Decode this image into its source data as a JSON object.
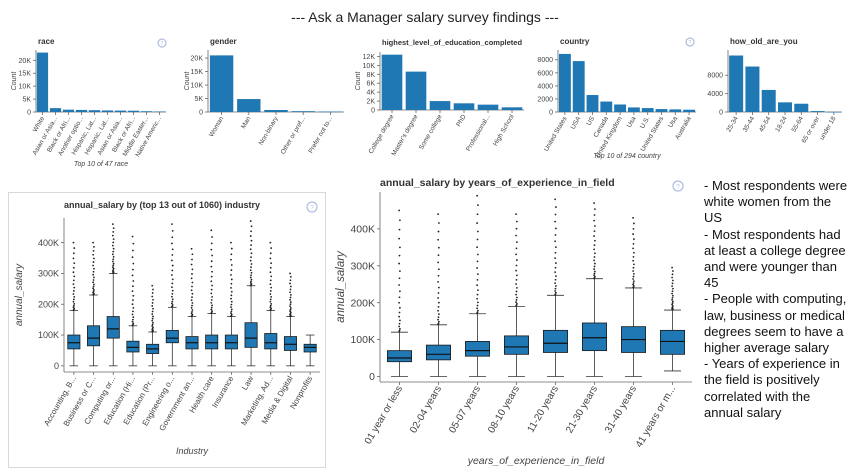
{
  "page_title": "--- Ask a Manager salary survey findings ---",
  "notes": [
    "- Most respondents were white women from the US",
    "- Most respondents had at least a college degree and were younger than 45",
    "- People with computing, law, business or medical degrees seem to have a higher average salary",
    "- Years of experience in the field is positively correlated with the annual salary"
  ],
  "colors": {
    "bar": "#1f77b4",
    "box": "#1f77b4",
    "axis": "#666666",
    "help_icon": "#b0bde0"
  },
  "chart_data": [
    {
      "id": "race",
      "type": "bar",
      "title": "race",
      "ylabel": "Count",
      "xlabel": "Top 10 of 47 race",
      "categories": [
        "White",
        "Asian or Asia...",
        "Black or Afri...",
        "Another optio...",
        "Hispanic, Lat...",
        "Hispanic, Lat...",
        "Asian or Asia...",
        "Black or Afri...",
        "Middle Easter...",
        "Native Americ..."
      ],
      "values": [
        23000,
        1500,
        900,
        800,
        700,
        600,
        550,
        500,
        300,
        200
      ],
      "yticks": [
        0,
        5000,
        10000,
        15000,
        20000
      ],
      "ytick_labels": [
        "0",
        "5K",
        "10K",
        "15K",
        "20K"
      ],
      "ylim": [
        0,
        24000
      ]
    },
    {
      "id": "gender",
      "type": "bar",
      "title": "gender",
      "ylabel": "Count",
      "xlabel": "",
      "categories": [
        "Woman",
        "Man",
        "Non-binary",
        "Other or pref...",
        "Prefer not to..."
      ],
      "values": [
        21000,
        4800,
        750,
        300,
        150
      ],
      "yticks": [
        0,
        5000,
        10000,
        15000,
        20000
      ],
      "ytick_labels": [
        "0",
        "5K",
        "10K",
        "15K",
        "20K"
      ],
      "ylim": [
        0,
        23000
      ]
    },
    {
      "id": "education",
      "type": "bar",
      "title": "highest_level_of_education_completed",
      "ylabel": "Count",
      "xlabel": "",
      "categories": [
        "College degree",
        "Master's degree",
        "Some college",
        "PhD",
        "Professional...",
        "High School"
      ],
      "values": [
        12400,
        8600,
        2000,
        1500,
        1200,
        600
      ],
      "yticks": [
        0,
        2000,
        4000,
        6000,
        8000,
        10000,
        12000
      ],
      "ytick_labels": [
        "0",
        "2K",
        "4K",
        "6K",
        "8K",
        "10K",
        "12K"
      ],
      "ylim": [
        0,
        13000
      ]
    },
    {
      "id": "country",
      "type": "bar",
      "title": "country",
      "ylabel": "",
      "xlabel": "Top 10 of 294 country",
      "categories": [
        "United States",
        "USA",
        "US",
        "Canada",
        "United Kingdom",
        "Usa",
        "U.S.",
        "United States",
        "Usa",
        "Australia"
      ],
      "values": [
        8900,
        7800,
        2600,
        1600,
        1150,
        700,
        600,
        450,
        400,
        350
      ],
      "yticks": [
        0,
        2000,
        4000,
        6000,
        8000
      ],
      "ytick_labels": [
        "0",
        "2000",
        "4000",
        "6000",
        "8000"
      ],
      "ylim": [
        0,
        9500
      ]
    },
    {
      "id": "age",
      "type": "bar",
      "title": "how_old_are_you",
      "ylabel": "",
      "xlabel": "",
      "categories": [
        "25-34",
        "35-44",
        "45-54",
        "18-24",
        "55-64",
        "65 or over",
        "under 18"
      ],
      "values": [
        12300,
        9900,
        4800,
        2100,
        1800,
        200,
        30
      ],
      "yticks": [
        0,
        4000,
        8000
      ],
      "ytick_labels": [
        "0",
        "4000",
        "8000"
      ],
      "ylim": [
        0,
        13500
      ]
    },
    {
      "id": "industry",
      "type": "box",
      "title": "annual_salary by (top 13 out of 1060) industry",
      "ylabel": "annual_salary",
      "xlabel": "Industry",
      "categories": [
        "Accounting, B...",
        "Business or C...",
        "Computing or...",
        "Education (Hi...",
        "Education (Pr...",
        "Engineering o...",
        "Government an...",
        "Health care",
        "Insurance",
        "Law",
        "Marketing, Ad...",
        "Media & Digital",
        "Nonprofits"
      ],
      "boxes": [
        {
          "wlo": 0,
          "q1": 55000,
          "med": 75000,
          "q3": 100000,
          "whi": 180000,
          "outmax": 400000
        },
        {
          "wlo": 0,
          "q1": 65000,
          "med": 90000,
          "q3": 130000,
          "whi": 230000,
          "outmax": 400000
        },
        {
          "wlo": 0,
          "q1": 90000,
          "med": 120000,
          "q3": 160000,
          "whi": 300000,
          "outmax": 460000
        },
        {
          "wlo": 0,
          "q1": 45000,
          "med": 60000,
          "q3": 80000,
          "whi": 130000,
          "outmax": 420000
        },
        {
          "wlo": 0,
          "q1": 40000,
          "med": 55000,
          "q3": 70000,
          "whi": 110000,
          "outmax": 260000
        },
        {
          "wlo": 0,
          "q1": 75000,
          "med": 90000,
          "q3": 115000,
          "whi": 190000,
          "outmax": 460000
        },
        {
          "wlo": 0,
          "q1": 55000,
          "med": 75000,
          "q3": 95000,
          "whi": 160000,
          "outmax": 380000
        },
        {
          "wlo": 0,
          "q1": 55000,
          "med": 75000,
          "q3": 100000,
          "whi": 170000,
          "outmax": 440000
        },
        {
          "wlo": 0,
          "q1": 55000,
          "med": 75000,
          "q3": 100000,
          "whi": 160000,
          "outmax": 400000
        },
        {
          "wlo": 0,
          "q1": 60000,
          "med": 90000,
          "q3": 140000,
          "whi": 260000,
          "outmax": 470000
        },
        {
          "wlo": 0,
          "q1": 55000,
          "med": 75000,
          "q3": 105000,
          "whi": 180000,
          "outmax": 400000
        },
        {
          "wlo": 0,
          "q1": 50000,
          "med": 70000,
          "q3": 95000,
          "whi": 160000,
          "outmax": 300000
        },
        {
          "wlo": 0,
          "q1": 45000,
          "med": 60000,
          "q3": 70000,
          "whi": 100000,
          "outmax": 0
        }
      ],
      "yticks": [
        0,
        100000,
        200000,
        300000,
        400000
      ],
      "ytick_labels": [
        "0",
        "100K",
        "200K",
        "300K",
        "400K"
      ],
      "ylim": [
        -20000,
        480000
      ]
    },
    {
      "id": "experience",
      "type": "box",
      "title": "annual_salary by years_of_experience_in_field",
      "ylabel": "annual_salary",
      "xlabel": "years_of_experience_in_field",
      "categories": [
        "01 year or less",
        "02-04 years",
        "05-07 years",
        "08-10 years",
        "11-20 years",
        "21-30 years",
        "31-40 years",
        "41 years or m..."
      ],
      "boxes": [
        {
          "wlo": 0,
          "q1": 40000,
          "med": 50000,
          "q3": 70000,
          "whi": 120000,
          "outmax": 450000
        },
        {
          "wlo": 0,
          "q1": 45000,
          "med": 60000,
          "q3": 85000,
          "whi": 140000,
          "outmax": 440000
        },
        {
          "wlo": 0,
          "q1": 55000,
          "med": 70000,
          "q3": 95000,
          "whi": 170000,
          "outmax": 490000
        },
        {
          "wlo": 0,
          "q1": 60000,
          "med": 80000,
          "q3": 110000,
          "whi": 190000,
          "outmax": 440000
        },
        {
          "wlo": 0,
          "q1": 65000,
          "med": 90000,
          "q3": 125000,
          "whi": 220000,
          "outmax": 480000
        },
        {
          "wlo": 0,
          "q1": 70000,
          "med": 105000,
          "q3": 145000,
          "whi": 265000,
          "outmax": 470000
        },
        {
          "wlo": 0,
          "q1": 65000,
          "med": 100000,
          "q3": 135000,
          "whi": 240000,
          "outmax": 430000
        },
        {
          "wlo": 15000,
          "q1": 60000,
          "med": 95000,
          "q3": 125000,
          "whi": 180000,
          "outmax": 295000
        }
      ],
      "yticks": [
        0,
        100000,
        200000,
        300000,
        400000
      ],
      "ytick_labels": [
        "0",
        "100K",
        "200K",
        "300K",
        "400K"
      ],
      "ylim": [
        -15000,
        500000
      ]
    }
  ]
}
